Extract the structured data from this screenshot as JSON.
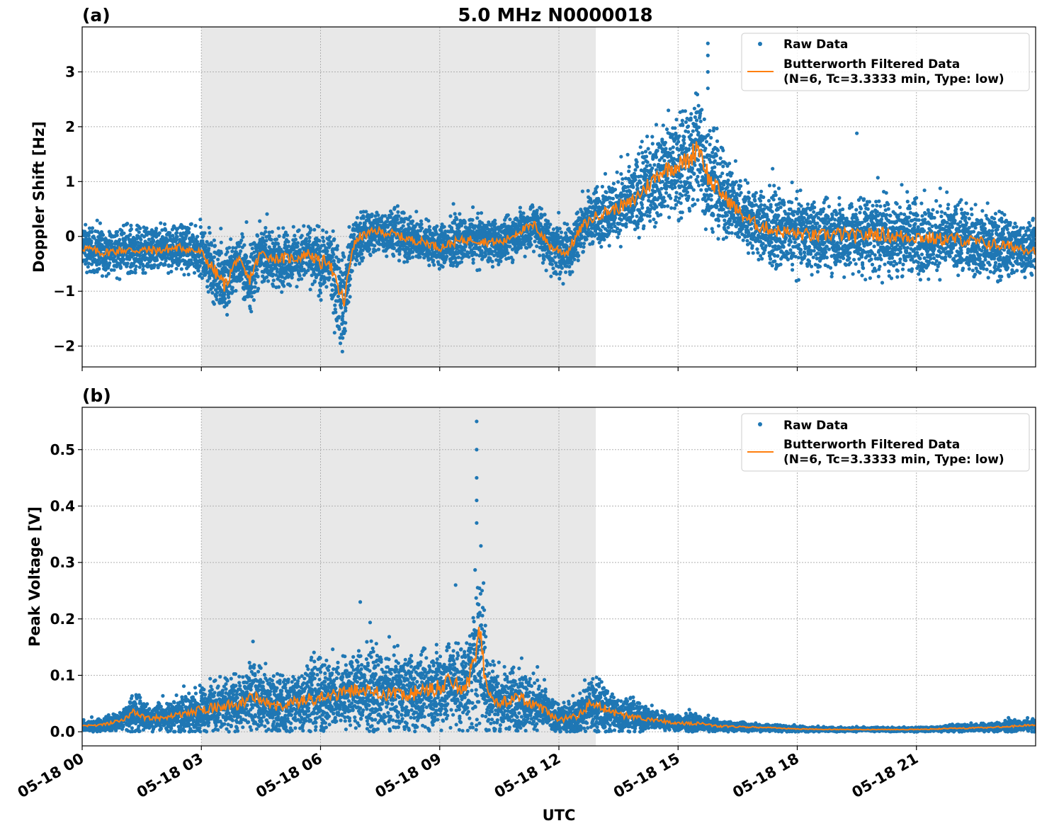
{
  "title": "5.0 MHz N0000018",
  "colors": {
    "raw": "#1f77b4",
    "filtered": "#ff7f0e",
    "shade": "#e8e8e8",
    "grid": "#b0b0b0"
  },
  "chart_data": [
    {
      "type": "scatter",
      "panel_label": "(a)",
      "title": "5.0 MHz N0000018",
      "ylabel": "Doppler Shift [Hz]",
      "xlabel": "",
      "xlim_hours": [
        0,
        24
      ],
      "ylim": [
        -2.38,
        3.82
      ],
      "yticks": [
        -2,
        -1,
        0,
        1,
        2,
        3
      ],
      "ytick_labels": [
        "−2",
        "−1",
        "0",
        "1",
        "2",
        "3"
      ],
      "grid": true,
      "legend_position": "top-right",
      "legend": [
        "Raw Data",
        "Butterworth Filtered Data",
        "(N=6, Tc=3.3333 min, Type: low)"
      ],
      "shaded_interval_hours": [
        3.0,
        12.93
      ],
      "series": [
        {
          "name": "Raw Data",
          "style": "points",
          "x_hours": [
            0.0,
            0.5,
            1.0,
            1.5,
            2.0,
            2.5,
            3.0,
            3.3,
            3.6,
            3.9,
            4.2,
            4.5,
            4.8,
            5.1,
            5.4,
            5.7,
            6.0,
            6.2,
            6.4,
            6.6,
            6.8,
            7.0,
            7.4,
            7.8,
            8.2,
            8.6,
            9.0,
            9.4,
            9.8,
            10.2,
            10.6,
            11.0,
            11.4,
            11.8,
            12.2,
            12.6,
            13.0,
            13.4,
            13.8,
            14.2,
            14.6,
            15.0,
            15.3,
            15.5,
            15.8,
            16.2,
            16.6,
            17.0,
            17.5,
            18.0,
            18.5,
            19.0,
            19.5,
            20.0,
            20.5,
            21.0,
            21.5,
            22.0,
            22.5,
            23.0,
            23.5,
            24.0
          ],
          "y": [
            -0.2,
            -0.3,
            -0.25,
            -0.25,
            -0.25,
            -0.2,
            -0.3,
            -0.6,
            -0.9,
            -0.4,
            -0.8,
            -0.3,
            -0.4,
            -0.4,
            -0.4,
            -0.3,
            -0.5,
            -0.4,
            -0.9,
            -1.2,
            -0.2,
            0.0,
            0.1,
            0.05,
            -0.05,
            -0.1,
            -0.2,
            -0.1,
            -0.05,
            -0.1,
            -0.1,
            0.1,
            0.2,
            -0.2,
            -0.3,
            0.2,
            0.4,
            0.5,
            0.6,
            0.9,
            1.2,
            1.3,
            1.4,
            1.7,
            1.0,
            0.7,
            0.4,
            0.2,
            0.1,
            0.05,
            0.0,
            0.05,
            0.0,
            0.05,
            0.0,
            0.0,
            -0.05,
            -0.05,
            -0.1,
            -0.15,
            -0.2,
            -0.25
          ],
          "spread": [
            0.35,
            0.35,
            0.35,
            0.35,
            0.35,
            0.35,
            0.35,
            0.55,
            0.6,
            0.4,
            0.55,
            0.4,
            0.4,
            0.45,
            0.4,
            0.4,
            0.55,
            0.5,
            0.7,
            0.7,
            0.4,
            0.35,
            0.35,
            0.35,
            0.35,
            0.35,
            0.35,
            0.35,
            0.35,
            0.35,
            0.35,
            0.35,
            0.4,
            0.4,
            0.4,
            0.4,
            0.45,
            0.5,
            0.6,
            0.7,
            0.7,
            0.75,
            0.8,
            1.1,
            0.8,
            0.6,
            0.55,
            0.55,
            0.55,
            0.55,
            0.55,
            0.55,
            0.6,
            0.6,
            0.6,
            0.6,
            0.55,
            0.55,
            0.5,
            0.5,
            0.45,
            0.4
          ]
        },
        {
          "name": "Butterworth Filtered Data",
          "style": "line",
          "x_hours": [
            0.0,
            0.5,
            1.0,
            1.5,
            2.0,
            2.5,
            3.0,
            3.3,
            3.6,
            3.9,
            4.2,
            4.5,
            4.8,
            5.1,
            5.4,
            5.7,
            6.0,
            6.2,
            6.4,
            6.6,
            6.8,
            7.0,
            7.4,
            7.8,
            8.2,
            8.6,
            9.0,
            9.4,
            9.8,
            10.2,
            10.6,
            11.0,
            11.4,
            11.8,
            12.2,
            12.6,
            13.0,
            13.4,
            13.8,
            14.2,
            14.6,
            15.0,
            15.3,
            15.5,
            15.8,
            16.2,
            16.6,
            17.0,
            17.5,
            18.0,
            18.5,
            19.0,
            19.5,
            20.0,
            20.5,
            21.0,
            21.5,
            22.0,
            22.5,
            23.0,
            23.5,
            24.0
          ],
          "y": [
            -0.2,
            -0.3,
            -0.25,
            -0.25,
            -0.25,
            -0.2,
            -0.3,
            -0.6,
            -0.9,
            -0.4,
            -0.8,
            -0.3,
            -0.4,
            -0.4,
            -0.4,
            -0.3,
            -0.5,
            -0.4,
            -0.9,
            -1.2,
            -0.2,
            0.0,
            0.1,
            0.05,
            -0.05,
            -0.1,
            -0.2,
            -0.1,
            -0.05,
            -0.1,
            -0.1,
            0.1,
            0.2,
            -0.2,
            -0.3,
            0.2,
            0.4,
            0.5,
            0.6,
            0.9,
            1.2,
            1.3,
            1.4,
            1.7,
            1.0,
            0.7,
            0.4,
            0.2,
            0.1,
            0.05,
            0.0,
            0.05,
            0.0,
            0.05,
            0.0,
            0.0,
            -0.05,
            -0.05,
            -0.1,
            -0.15,
            -0.2,
            -0.25
          ]
        }
      ]
    },
    {
      "type": "scatter",
      "panel_label": "(b)",
      "title": "",
      "ylabel": "Peak Voltage [V]",
      "xlabel": "UTC",
      "xlim_hours": [
        0,
        24
      ],
      "ylim": [
        -0.025,
        0.575
      ],
      "yticks": [
        0.0,
        0.1,
        0.2,
        0.3,
        0.4,
        0.5
      ],
      "ytick_labels": [
        "0.0",
        "0.1",
        "0.2",
        "0.3",
        "0.4",
        "0.5"
      ],
      "xticks_hours": [
        0,
        3,
        6,
        9,
        12,
        15,
        18,
        21
      ],
      "xtick_labels": [
        "05-18 00",
        "05-18 03",
        "05-18 06",
        "05-18 09",
        "05-18 12",
        "05-18 15",
        "05-18 18",
        "05-18 21"
      ],
      "grid": true,
      "legend_position": "top-right",
      "legend": [
        "Raw Data",
        "Butterworth Filtered Data",
        "(N=6, Tc=3.3333 min, Type: low)"
      ],
      "shaded_interval_hours": [
        3.0,
        12.93
      ],
      "series": [
        {
          "name": "Raw Data",
          "style": "points",
          "x_hours": [
            0.0,
            0.5,
            1.0,
            1.3,
            1.6,
            2.0,
            2.5,
            3.0,
            3.5,
            4.0,
            4.3,
            4.7,
            5.0,
            5.5,
            6.0,
            6.5,
            7.0,
            7.5,
            8.0,
            8.5,
            9.0,
            9.3,
            9.6,
            9.9,
            10.0,
            10.2,
            10.5,
            11.0,
            11.5,
            12.0,
            12.5,
            12.8,
            13.0,
            13.5,
            14.0,
            14.5,
            15.0,
            15.5,
            16.0,
            17.0,
            18.0,
            19.0,
            20.0,
            21.0,
            22.0,
            23.0,
            23.5,
            24.0
          ],
          "y": [
            0.01,
            0.012,
            0.02,
            0.035,
            0.025,
            0.025,
            0.03,
            0.04,
            0.045,
            0.05,
            0.065,
            0.05,
            0.045,
            0.055,
            0.06,
            0.065,
            0.075,
            0.07,
            0.065,
            0.07,
            0.08,
            0.09,
            0.075,
            0.12,
            0.17,
            0.08,
            0.05,
            0.06,
            0.045,
            0.02,
            0.03,
            0.05,
            0.045,
            0.03,
            0.025,
            0.02,
            0.015,
            0.015,
            0.01,
            0.008,
            0.005,
            0.004,
            0.004,
            0.004,
            0.006,
            0.008,
            0.01,
            0.012
          ],
          "spread": [
            0.008,
            0.01,
            0.015,
            0.03,
            0.02,
            0.02,
            0.025,
            0.035,
            0.04,
            0.045,
            0.05,
            0.045,
            0.045,
            0.05,
            0.055,
            0.055,
            0.06,
            0.06,
            0.06,
            0.06,
            0.065,
            0.07,
            0.06,
            0.1,
            0.15,
            0.07,
            0.045,
            0.05,
            0.04,
            0.02,
            0.03,
            0.04,
            0.04,
            0.03,
            0.02,
            0.015,
            0.012,
            0.012,
            0.008,
            0.006,
            0.004,
            0.003,
            0.003,
            0.003,
            0.005,
            0.007,
            0.008,
            0.008
          ]
        },
        {
          "name": "Butterworth Filtered Data",
          "style": "line",
          "x_hours": [
            0.0,
            0.5,
            1.0,
            1.3,
            1.6,
            2.0,
            2.5,
            3.0,
            3.5,
            4.0,
            4.3,
            4.7,
            5.0,
            5.5,
            6.0,
            6.5,
            7.0,
            7.5,
            8.0,
            8.5,
            9.0,
            9.3,
            9.6,
            9.9,
            10.0,
            10.2,
            10.5,
            11.0,
            11.5,
            12.0,
            12.5,
            12.8,
            13.0,
            13.5,
            14.0,
            14.5,
            15.0,
            15.5,
            16.0,
            17.0,
            18.0,
            19.0,
            20.0,
            21.0,
            22.0,
            23.0,
            23.5,
            24.0
          ],
          "y": [
            0.01,
            0.012,
            0.02,
            0.035,
            0.025,
            0.025,
            0.03,
            0.04,
            0.045,
            0.05,
            0.065,
            0.05,
            0.045,
            0.055,
            0.06,
            0.065,
            0.075,
            0.07,
            0.065,
            0.07,
            0.08,
            0.09,
            0.075,
            0.12,
            0.17,
            0.08,
            0.05,
            0.06,
            0.045,
            0.02,
            0.03,
            0.05,
            0.045,
            0.03,
            0.025,
            0.02,
            0.015,
            0.015,
            0.01,
            0.008,
            0.005,
            0.004,
            0.004,
            0.004,
            0.006,
            0.008,
            0.01,
            0.012
          ]
        }
      ]
    }
  ]
}
